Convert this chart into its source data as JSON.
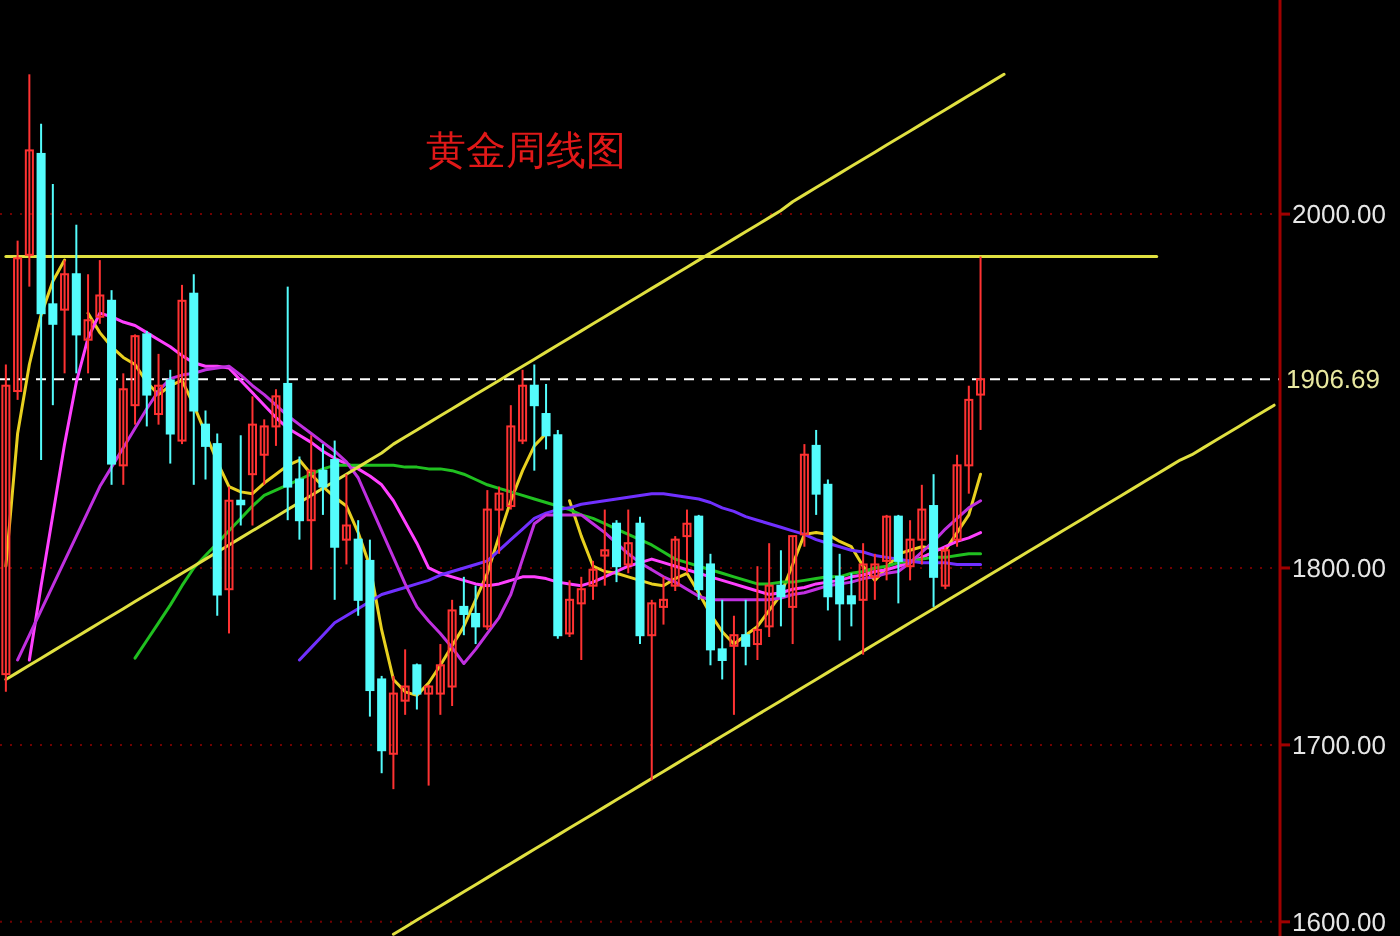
{
  "chart_data": {
    "type": "candlestick",
    "title": "黄金周线图",
    "categories": [
      null,
      null,
      null,
      null,
      null,
      null,
      null,
      null,
      null,
      null,
      null,
      null,
      null,
      null,
      null,
      null,
      null,
      null,
      null,
      null,
      null,
      null,
      null,
      null,
      null,
      null,
      null,
      null,
      null,
      null,
      null,
      null,
      null,
      null,
      null,
      null,
      null,
      null,
      null,
      null,
      null,
      null,
      null,
      null,
      null,
      null,
      null,
      null,
      null,
      null,
      null,
      null,
      null,
      null,
      null,
      null,
      null,
      null,
      null,
      null,
      null,
      null,
      null,
      null,
      null,
      null,
      null,
      null,
      null,
      null,
      null,
      null,
      null,
      null,
      null,
      null,
      null,
      null,
      null,
      null,
      null,
      null,
      null,
      null,
      null,
      null,
      null,
      null,
      null,
      null,
      null,
      null,
      null,
      null,
      null,
      null,
      null,
      null,
      null,
      null,
      null,
      null,
      null,
      null,
      null,
      null,
      null,
      null,
      null
    ],
    "ohlc": [
      [
        1740,
        1915,
        1730,
        1903
      ],
      [
        1900,
        1985,
        1895,
        1975
      ],
      [
        1977,
        2079,
        1959,
        2036
      ],
      [
        2034,
        2051,
        1861,
        1944
      ],
      [
        1949,
        2017,
        1892,
        1938
      ],
      [
        1946,
        1974,
        1910,
        1966
      ],
      [
        1966,
        1994,
        1910,
        1932
      ],
      [
        1929,
        1966,
        1910,
        1940
      ],
      [
        1942,
        1974,
        1938,
        1954
      ],
      [
        1951,
        1957,
        1847,
        1859
      ],
      [
        1858,
        1910,
        1847,
        1901
      ],
      [
        1892,
        1932,
        1881,
        1931
      ],
      [
        1932,
        1934,
        1880,
        1898
      ],
      [
        1887,
        1921,
        1881,
        1903
      ],
      [
        1906,
        1912,
        1859,
        1876
      ],
      [
        1872,
        1960,
        1870,
        1951
      ],
      [
        1955,
        1966,
        1847,
        1889
      ],
      [
        1881,
        1889,
        1850,
        1869
      ],
      [
        1870,
        1876,
        1773,
        1785
      ],
      [
        1788,
        1846,
        1763,
        1838
      ],
      [
        1838,
        1875,
        1824,
        1836
      ],
      [
        1853,
        1897,
        1824,
        1881
      ],
      [
        1864,
        1884,
        1847,
        1880
      ],
      [
        1880,
        1901,
        1869,
        1897
      ],
      [
        1904,
        1959,
        1827,
        1846
      ],
      [
        1850,
        1863,
        1816,
        1827
      ],
      [
        1827,
        1875,
        1799,
        1855
      ],
      [
        1855,
        1870,
        1830,
        1846
      ],
      [
        1861,
        1872,
        1782,
        1812
      ],
      [
        1816,
        1853,
        1802,
        1824
      ],
      [
        1816,
        1827,
        1773,
        1782
      ],
      [
        1804,
        1816,
        1716,
        1731
      ],
      [
        1737,
        1739,
        1684,
        1697
      ],
      [
        1695,
        1739,
        1675,
        1729
      ],
      [
        1725,
        1754,
        1717,
        1733
      ],
      [
        1745,
        1746,
        1720,
        1729
      ],
      [
        1729,
        1734,
        1677,
        1733
      ],
      [
        1729,
        1757,
        1717,
        1745
      ],
      [
        1733,
        1782,
        1722,
        1776
      ],
      [
        1778,
        1795,
        1762,
        1774
      ],
      [
        1774,
        1790,
        1757,
        1767
      ],
      [
        1767,
        1844,
        1765,
        1833
      ],
      [
        1833,
        1846,
        1808,
        1842
      ],
      [
        1835,
        1892,
        1833,
        1880
      ],
      [
        1872,
        1912,
        1870,
        1903
      ],
      [
        1903,
        1915,
        1855,
        1892
      ],
      [
        1887,
        1904,
        1867,
        1875
      ],
      [
        1875,
        1878,
        1760,
        1762
      ],
      [
        1763,
        1793,
        1761,
        1782
      ],
      [
        1780,
        1795,
        1748,
        1788
      ],
      [
        1790,
        1804,
        1782,
        1799
      ],
      [
        1807,
        1833,
        1790,
        1810
      ],
      [
        1825,
        1827,
        1792,
        1801
      ],
      [
        1802,
        1833,
        1797,
        1814
      ],
      [
        1825,
        1829,
        1757,
        1762
      ],
      [
        1762,
        1782,
        1680,
        1780
      ],
      [
        1778,
        1795,
        1768,
        1782
      ],
      [
        1790,
        1818,
        1787,
        1816
      ],
      [
        1818,
        1833,
        1797,
        1825
      ],
      [
        1829,
        1830,
        1782,
        1788
      ],
      [
        1802,
        1808,
        1745,
        1754
      ],
      [
        1754,
        1782,
        1737,
        1748
      ],
      [
        1756,
        1773,
        1717,
        1762
      ],
      [
        1762,
        1782,
        1745,
        1756
      ],
      [
        1757,
        1801,
        1748,
        1765
      ],
      [
        1767,
        1814,
        1761,
        1790
      ],
      [
        1790,
        1810,
        1767,
        1784
      ],
      [
        1778,
        1818,
        1757,
        1818
      ],
      [
        1819,
        1870,
        1812,
        1864
      ],
      [
        1869,
        1878,
        1830,
        1842
      ],
      [
        1847,
        1850,
        1776,
        1784
      ],
      [
        1795,
        1808,
        1759,
        1780
      ],
      [
        1784,
        1797,
        1767,
        1780
      ],
      [
        1782,
        1814,
        1751,
        1802
      ],
      [
        1795,
        1808,
        1782,
        1802
      ],
      [
        1804,
        1830,
        1793,
        1829
      ],
      [
        1829,
        1830,
        1780,
        1804
      ],
      [
        1801,
        1827,
        1793,
        1816
      ],
      [
        1816,
        1847,
        1802,
        1833
      ],
      [
        1835,
        1853,
        1778,
        1795
      ],
      [
        1790,
        1812,
        1788,
        1810
      ],
      [
        1816,
        1864,
        1812,
        1858
      ],
      [
        1858,
        1903,
        1842,
        1895
      ],
      [
        1898,
        1976,
        1878,
        1906.69
      ],
      null,
      null,
      null,
      null,
      null,
      null,
      null,
      null,
      null,
      null,
      null,
      null,
      null,
      null,
      null,
      null,
      null,
      null,
      null,
      null,
      null,
      null,
      null,
      null,
      null
    ],
    "colors": [
      "#ff3232",
      "#ff3232",
      "#ff3232",
      "#54fcfc",
      "#54fcfc",
      "#ff3232",
      "#54fcfc",
      "#ff3232",
      "#ff3232",
      "#54fcfc",
      "#ff3232",
      "#ff3232",
      "#54fcfc",
      "#ff3232",
      "#54fcfc",
      "#ff3232",
      "#54fcfc",
      "#54fcfc",
      "#54fcfc",
      "#ff3232",
      "#54fcfc",
      "#ff3232",
      "#ff3232",
      "#ff3232",
      "#54fcfc",
      "#54fcfc",
      "#ff3232",
      "#54fcfc",
      "#54fcfc",
      "#ff3232",
      "#54fcfc",
      "#54fcfc",
      "#54fcfc",
      "#ff3232",
      "#ff3232",
      "#54fcfc",
      "#ff3232",
      "#ff3232",
      "#ff3232",
      "#54fcfc",
      "#54fcfc",
      "#ff3232",
      "#ff3232",
      "#ff3232",
      "#ff3232",
      "#54fcfc",
      "#54fcfc",
      "#54fcfc",
      "#ff3232",
      "#ff3232",
      "#ff3232",
      "#ff3232",
      "#54fcfc",
      "#ff3232",
      "#54fcfc",
      "#ff3232",
      "#ff3232",
      "#ff3232",
      "#ff3232",
      "#54fcfc",
      "#54fcfc",
      "#54fcfc",
      "#ff3232",
      "#54fcfc",
      "#ff3232",
      "#ff3232",
      "#54fcfc",
      "#ff3232",
      "#ff3232",
      "#54fcfc",
      "#54fcfc",
      "#54fcfc",
      "#54fcfc",
      "#ff3232",
      "#ff3232",
      "#ff3232",
      "#54fcfc",
      "#ff3232",
      "#ff3232",
      "#54fcfc",
      "#ff3232",
      "#ff3232",
      "#ff3232",
      "#ff3232",
      null,
      null,
      null,
      null,
      null,
      null,
      null,
      null,
      null,
      null,
      null,
      null,
      null,
      null,
      null,
      null,
      null,
      null,
      null,
      null,
      null,
      null,
      null,
      null,
      null
    ],
    "series": [
      {
        "type": "line",
        "color": "#e8d020",
        "values": [
          1801,
          1876,
          1915,
          1943,
          1962,
          1974,
          null,
          1944,
          1933,
          1925,
          1919,
          1915,
          1905,
          1898,
          1903,
          1906,
          1892,
          1876,
          1860,
          1846,
          1843,
          1842,
          1848,
          1853,
          1858,
          1861,
          1853,
          1846,
          1840,
          1835,
          1820,
          1801,
          1765,
          1737,
          1730,
          1728,
          1735,
          1745,
          1756,
          1767,
          1782,
          1797,
          1818,
          1838,
          1855,
          1869,
          1876,
          null,
          1838,
          1818,
          1801,
          1798,
          1797,
          1795,
          1793,
          1791,
          1790,
          1794,
          1797,
          1786,
          1774,
          1764,
          1757,
          1762,
          1767,
          1776,
          1785,
          1802,
          1819,
          1820,
          1819,
          1815,
          1812,
          1801,
          1793,
          1800,
          1808,
          1810,
          1812,
          1811,
          1810,
          1820,
          1830,
          1853,
          null,
          null,
          null,
          null,
          null,
          null,
          null,
          null,
          null,
          null,
          null,
          null,
          null,
          null,
          null,
          null,
          null,
          null,
          null,
          null,
          null,
          null,
          null,
          null,
          null
        ]
      },
      {
        "type": "line",
        "color": "#ff40ff",
        "values": [
          null,
          null,
          1748,
          1790,
          1830,
          1870,
          1905,
          1930,
          1944,
          1942,
          1939,
          1937,
          1933,
          1929,
          1925,
          1920,
          1916,
          1914,
          1914,
          1913,
          1906,
          1899,
          1892,
          1885,
          1879,
          1875,
          1871,
          1866,
          1862,
          1859,
          1856,
          1852,
          1847,
          1838,
          1826,
          1814,
          1800,
          1797,
          1795,
          1793,
          1791,
          1790,
          1791,
          1793,
          1795,
          1795,
          1794,
          1792,
          1791,
          1790,
          1792,
          1795,
          1798,
          1801,
          1803,
          1805,
          1803,
          1801,
          1799,
          1797,
          1795,
          1793,
          1791,
          1789,
          1787,
          1785,
          1786,
          1788,
          1789,
          1791,
          1792,
          1793,
          1795,
          1796,
          1798,
          1799,
          1801,
          1803,
          1806,
          1809,
          1812,
          1815,
          1817,
          1820,
          null,
          null,
          null,
          null,
          null,
          null,
          null,
          null,
          null,
          null,
          null,
          null,
          null,
          null,
          null,
          null,
          null,
          null,
          null,
          null,
          null,
          null,
          null,
          null,
          null
        ]
      },
      {
        "type": "line",
        "color": "#20c020",
        "values": [
          null,
          null,
          null,
          null,
          null,
          null,
          null,
          null,
          null,
          null,
          null,
          1749,
          1759,
          1769,
          1779,
          1790,
          1800,
          1807,
          1814,
          1821,
          1828,
          1835,
          1841,
          1844,
          1847,
          1850,
          1853,
          1856,
          1858,
          1858,
          1858,
          1858,
          1858,
          1858,
          1857,
          1857,
          1856,
          1856,
          1855,
          1853,
          1850,
          1847,
          1845,
          1843,
          1841,
          1839,
          1837,
          1835,
          1833,
          1830,
          1828,
          1825,
          1822,
          1819,
          1816,
          1813,
          1809,
          1805,
          1803,
          1801,
          1799,
          1797,
          1795,
          1793,
          1791,
          1791,
          1792,
          1792,
          1793,
          1794,
          1795,
          1795,
          1797,
          1798,
          1800,
          1801,
          1803,
          1804,
          1805,
          1806,
          1806,
          1807,
          1808,
          1808,
          null,
          null,
          null,
          null,
          null,
          null,
          null,
          null,
          null,
          null,
          null,
          null,
          null,
          null,
          null,
          null,
          null,
          null,
          null,
          null,
          null,
          null,
          null,
          null,
          null
        ]
      },
      {
        "type": "line",
        "color": "#7030ff",
        "values": [
          null,
          null,
          null,
          null,
          null,
          null,
          null,
          null,
          null,
          null,
          null,
          null,
          null,
          null,
          null,
          null,
          null,
          null,
          null,
          null,
          null,
          null,
          null,
          null,
          null,
          1748,
          1755,
          1762,
          1769,
          1773,
          1777,
          1781,
          1785,
          1787,
          1789,
          1791,
          1793,
          1796,
          1798,
          1800,
          1802,
          1804,
          1810,
          1816,
          1822,
          1828,
          1831,
          1833,
          1834,
          1836,
          1837,
          1838,
          1839,
          1840,
          1841,
          1842,
          1842,
          1841,
          1840,
          1839,
          1837,
          1834,
          1832,
          1829,
          1827,
          1825,
          1823,
          1821,
          1819,
          1816,
          1814,
          1812,
          1810,
          1809,
          1807,
          1806,
          1805,
          1804,
          1803,
          1803,
          1803,
          1802,
          1802,
          1802,
          null,
          null,
          null,
          null,
          null,
          null,
          null,
          null,
          null,
          null,
          null,
          null,
          null,
          null,
          null,
          null,
          null,
          null,
          null,
          null,
          null,
          null,
          null,
          null,
          null
        ]
      },
      {
        "type": "line",
        "color": "#c030e0",
        "values": [
          null,
          1748,
          1762,
          1776,
          1790,
          1804,
          1818,
          1832,
          1846,
          1857,
          1868,
          1879,
          1890,
          1900,
          1907,
          1909,
          1910,
          1912,
          1913,
          1914,
          1909,
          1903,
          1898,
          1892,
          1886,
          1881,
          1876,
          1871,
          1866,
          1860,
          1851,
          1836,
          1821,
          1806,
          1791,
          1778,
          1770,
          1763,
          1755,
          1746,
          1754,
          1763,
          1772,
          1785,
          1805,
          1825,
          1830,
          1830,
          1830,
          1830,
          1825,
          1820,
          1814,
          1808,
          1803,
          1799,
          1795,
          1792,
          1788,
          1784,
          1782,
          1782,
          1782,
          1782,
          1782,
          1782,
          1783,
          1785,
          1786,
          1788,
          1790,
          1791,
          1792,
          1794,
          1795,
          1797,
          1798,
          1803,
          1809,
          1815,
          1822,
          1828,
          1834,
          1838,
          null,
          null,
          null,
          null,
          null,
          null,
          null,
          null,
          null,
          null,
          null,
          null,
          null,
          null,
          null,
          null,
          null,
          null,
          null,
          null,
          null,
          null,
          null,
          null,
          null
        ]
      },
      {
        "type": "line",
        "color": "#e0e040",
        "values": [
          1737,
          1741,
          1745,
          1749,
          1753,
          1757,
          1761,
          1765,
          1769,
          1773,
          1777,
          1781,
          1785,
          1789,
          1793,
          1797,
          1801,
          1805,
          1809,
          1813,
          1817,
          1821,
          1825,
          1829,
          1833,
          1837,
          1841,
          1845,
          1849,
          1853,
          1857,
          1861,
          1865,
          1870,
          1874,
          1878,
          1882,
          1886,
          1890,
          1894,
          1898,
          1902,
          1906,
          1910,
          1914,
          1918,
          1922,
          1926,
          1930,
          1934,
          1938,
          1942,
          1946,
          1950,
          1954,
          1958,
          1962,
          1966,
          1970,
          1974,
          1978,
          1982,
          1986,
          1990,
          1994,
          1998,
          2002,
          2007,
          2011,
          2015,
          2019,
          2023,
          2027,
          2031,
          2035,
          2039,
          2043,
          2047,
          2051,
          2055,
          2059,
          2063,
          2067,
          2071,
          2075,
          2079,
          null,
          null,
          null,
          null,
          null,
          null,
          null,
          null,
          null,
          null,
          null,
          null,
          null,
          null,
          null,
          null,
          null,
          null,
          null,
          null,
          null,
          null,
          null
        ]
      },
      {
        "type": "line",
        "color": "#e0e040",
        "values": [
          null,
          null,
          null,
          null,
          null,
          null,
          null,
          null,
          null,
          null,
          null,
          null,
          null,
          null,
          null,
          null,
          null,
          null,
          null,
          null,
          null,
          null,
          null,
          null,
          null,
          null,
          null,
          null,
          null,
          null,
          null,
          null,
          null,
          1593,
          1597,
          1601,
          1605,
          1609,
          1613,
          1617,
          1621,
          1625,
          1629,
          1633,
          1637,
          1641,
          1645,
          1649,
          1653,
          1657,
          1661,
          1665,
          1669,
          1673,
          1677,
          1681,
          1685,
          1689,
          1693,
          1697,
          1701,
          1705,
          1709,
          1713,
          1717,
          1721,
          1725,
          1729,
          1733,
          1737,
          1741,
          1745,
          1749,
          1753,
          1757,
          1761,
          1765,
          1769,
          1773,
          1777,
          1781,
          1785,
          1789,
          1793,
          1797,
          1801,
          1805,
          1809,
          1813,
          1817,
          1821,
          1825,
          1829,
          1833,
          1837,
          1841,
          1845,
          1849,
          1853,
          1857,
          1861,
          1864,
          1868,
          1872,
          1876,
          1880,
          1884,
          1888,
          1892
        ]
      },
      {
        "type": "line",
        "color": "#e0e040",
        "values": [
          1976,
          1976,
          1976,
          1976,
          1976,
          1976,
          1976,
          1976,
          1976,
          1976,
          1976,
          1976,
          1976,
          1976,
          1976,
          1976,
          1976,
          1976,
          1976,
          1976,
          1976,
          1976,
          1976,
          1976,
          1976,
          1976,
          1976,
          1976,
          1976,
          1976,
          1976,
          1976,
          1976,
          1976,
          1976,
          1976,
          1976,
          1976,
          1976,
          1976,
          1976,
          1976,
          1976,
          1976,
          1976,
          1976,
          1976,
          1976,
          1976,
          1976,
          1976,
          1976,
          1976,
          1976,
          1976,
          1976,
          1976,
          1976,
          1976,
          1976,
          1976,
          1976,
          1976,
          1976,
          1976,
          1976,
          1976,
          1976,
          1976,
          1976,
          1976,
          1976,
          1976,
          1976,
          1976,
          1976,
          1976,
          1976,
          1976,
          1976,
          1976,
          1976,
          1976,
          1976,
          1976,
          1976,
          1976,
          1976,
          1976,
          1976,
          1976,
          1976,
          1976,
          1976,
          1976,
          1976,
          1976,
          1976,
          1976,
          null,
          null,
          null,
          null,
          null,
          null,
          null,
          null,
          null,
          null
        ]
      }
    ],
    "ylim": [
      1592,
      2121
    ],
    "yticks": [
      {
        "value": 1600,
        "label": "1600.00"
      },
      {
        "value": 1700,
        "label": "1700.00"
      },
      {
        "value": 1800,
        "label": "1800.00"
      },
      {
        "value": 2000,
        "label": "2000.00"
      }
    ],
    "ref_lines": [
      {
        "axis": "y",
        "value": 1906.69,
        "label": "1906.69",
        "color": "#ffffff",
        "line_style": "dashed"
      }
    ],
    "grid": "y",
    "tick_labels": "y",
    "marker": "none"
  }
}
